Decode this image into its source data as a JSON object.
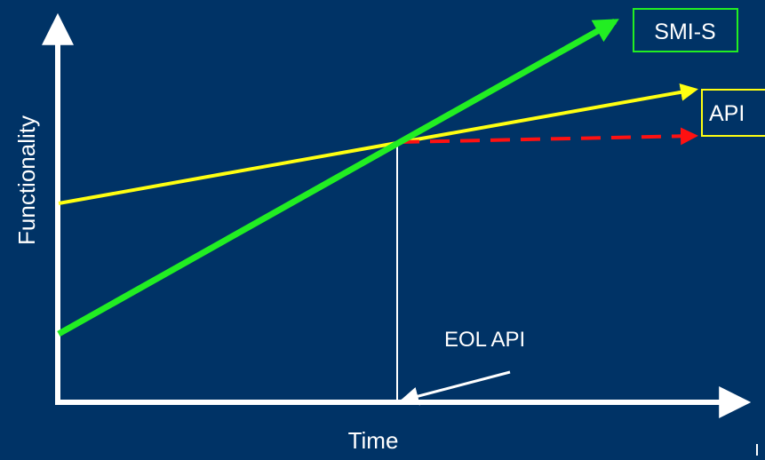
{
  "colors": {
    "background": "#003366",
    "axis": "#ffffff",
    "smi_s": "#22ee22",
    "api": "#ffff11",
    "api_eol": "#ff1111",
    "label_text": "#ffffff"
  },
  "diagram": {
    "x_axis_label": "Time",
    "y_axis_label": "Functionality",
    "smi_s_label": "SMI-S",
    "api_label": "API",
    "eol_label": "EOL API"
  }
}
